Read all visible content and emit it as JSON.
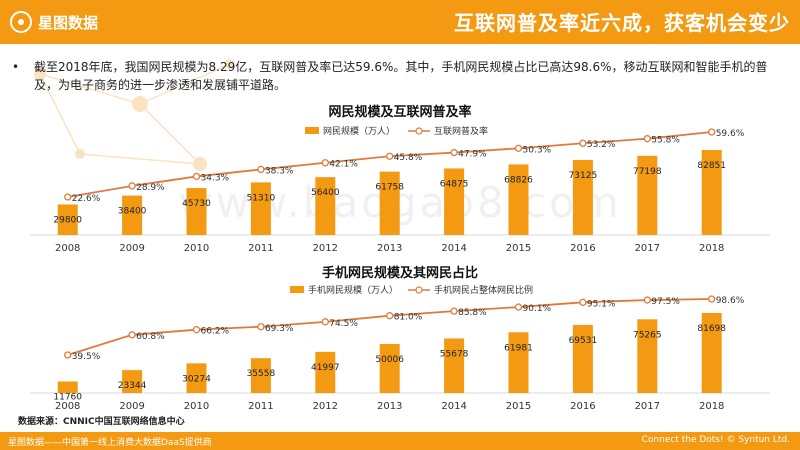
{
  "header": {
    "brand": "星图数据",
    "headline": "互联网普及率近六成，获客机会变少"
  },
  "bullet_text": "截至2018年底，我国网民规模为8.29亿，互联网普及率已达59.6%。其中，手机网民规模占比已高达98.6%，移动互联网和智能手机的普及，为电子商务的进一步渗透和发展铺平道路。",
  "watermark": "www.baogao8.com",
  "source": "数据来源：CNNIC中国互联网络信息中心",
  "footer": {
    "left": "星图数据——中国第一线上消费大数据DaaS提供商",
    "right": "Connect the Dots! © Syntun Ltd."
  },
  "colors": {
    "bar": "#f39a12",
    "line": "#e07a3c",
    "accent": "#f39a12"
  },
  "chart_data": [
    {
      "type": "bar+line",
      "title": "网民规模及互联网普及率",
      "categories": [
        "2008",
        "2009",
        "2010",
        "2011",
        "2012",
        "2013",
        "2014",
        "2015",
        "2016",
        "2017",
        "2018"
      ],
      "series": [
        {
          "name": "网民规模（万人）",
          "type": "bar",
          "values": [
            29800,
            38400,
            45730,
            51310,
            56400,
            61758,
            64875,
            68826,
            73125,
            77198,
            82851
          ]
        },
        {
          "name": "互联网普及率",
          "type": "line",
          "values": [
            22.6,
            28.9,
            34.3,
            38.3,
            42.1,
            45.8,
            47.9,
            50.3,
            53.2,
            55.8,
            59.6
          ],
          "labels": [
            "22.6%",
            "28.9%",
            "34.3%",
            "38.3%",
            "42.1%",
            "45.8%",
            "47.9%",
            "50.3%",
            "53.2%",
            "55.8%",
            "59.6%"
          ]
        }
      ],
      "legend": "top-center",
      "grid": false
    },
    {
      "type": "bar+line",
      "title": "手机网民规模及其网民占比",
      "categories": [
        "2008",
        "2009",
        "2010",
        "2011",
        "2012",
        "2013",
        "2014",
        "2015",
        "2016",
        "2017",
        "2018"
      ],
      "series": [
        {
          "name": "手机网民规模（万人）",
          "type": "bar",
          "values": [
            11760,
            23344,
            30274,
            35558,
            41997,
            50006,
            55678,
            61981,
            69531,
            75265,
            81698
          ]
        },
        {
          "name": "手机网民占整体网民比例",
          "type": "line",
          "values": [
            39.5,
            60.8,
            66.2,
            69.3,
            74.5,
            81.0,
            85.8,
            90.1,
            95.1,
            97.5,
            98.6
          ],
          "labels": [
            "39.5%",
            "60.8%",
            "66.2%",
            "69.3%",
            "74.5%",
            "81.0%",
            "85.8%",
            "90.1%",
            "95.1%",
            "97.5%",
            "98.6%"
          ]
        }
      ],
      "legend": "top-center",
      "grid": false
    }
  ]
}
